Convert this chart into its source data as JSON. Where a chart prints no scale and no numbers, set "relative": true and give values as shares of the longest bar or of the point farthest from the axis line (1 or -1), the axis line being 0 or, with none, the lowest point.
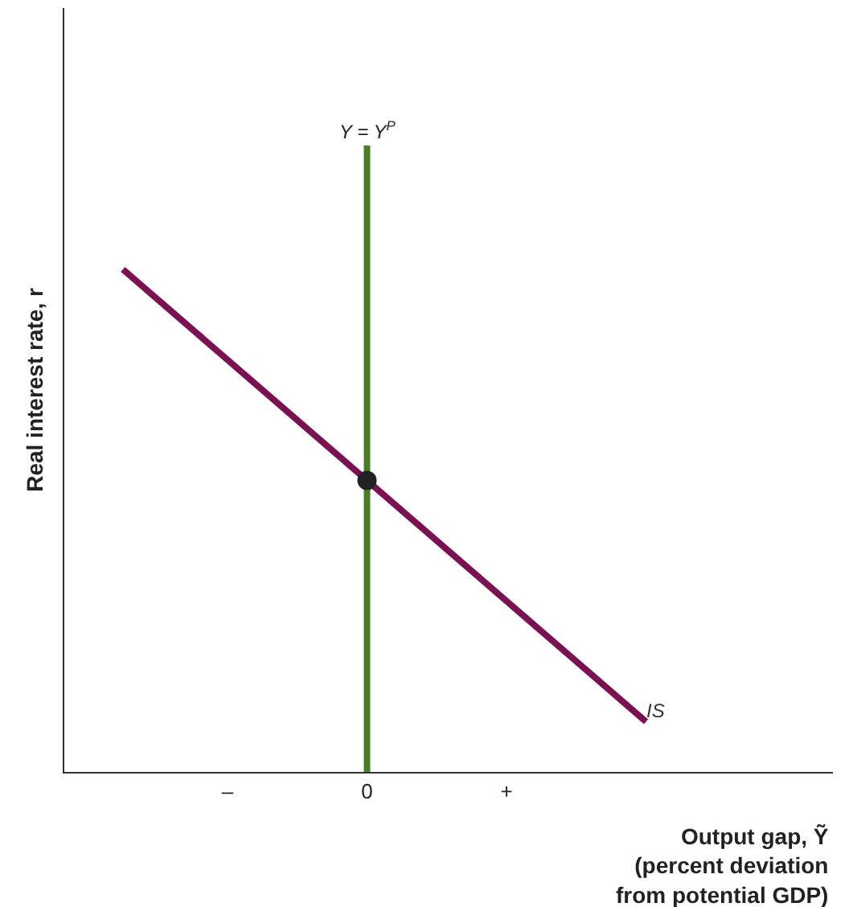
{
  "chart_data": {
    "type": "line",
    "relative": true,
    "ylabel": "Real interest rate, r",
    "xlabel": "Output gap, Ỹ\n(percent deviation\nfrom potential GDP)",
    "categories": [
      null,
      null,
      null,
      null,
      "–",
      null,
      null,
      null,
      "0",
      null,
      null,
      null,
      "+",
      null,
      null,
      null,
      null,
      null,
      null,
      null,
      null,
      null
    ],
    "series": [
      {
        "name": "IS",
        "color": "#7a1150",
        "values": [
          null,
          1,
          0.94,
          0.88,
          0.82,
          0.76,
          0.7,
          0.64,
          0.58,
          0.52,
          0.46,
          0.4,
          0.34,
          0.28,
          0.22,
          0.16,
          0.1,
          null,
          null,
          null,
          null,
          null
        ]
      },
      {
        "type": "scatter",
        "color": "#222222",
        "x": [
          "0"
        ],
        "values": [
          0.58
        ],
        "marker": "circle"
      }
    ],
    "ref_lines": [
      {
        "axis": "x",
        "value": "0",
        "label": "Y = Y$^{P}$",
        "color": "#4a7f2a"
      }
    ],
    "grid": false,
    "legend": false
  }
}
